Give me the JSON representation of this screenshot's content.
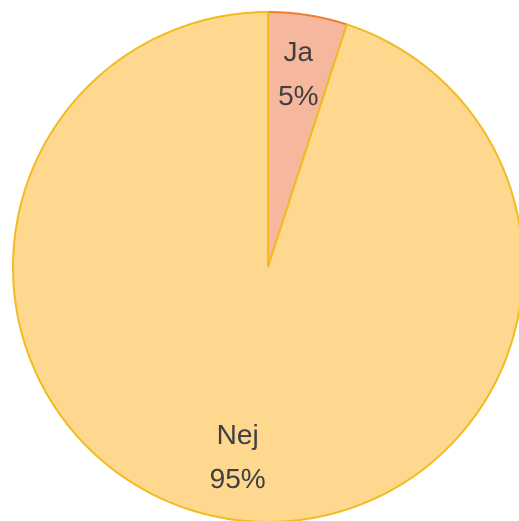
{
  "chart_data": {
    "type": "pie",
    "categories": [
      "Ja",
      "Nej"
    ],
    "values": [
      5,
      95
    ],
    "value_labels": [
      "5%",
      "95%"
    ],
    "colors": [
      "#f6b89c",
      "#fed88f"
    ],
    "edge_colors": [
      "#ed7d31",
      "#f2bb1f"
    ]
  }
}
